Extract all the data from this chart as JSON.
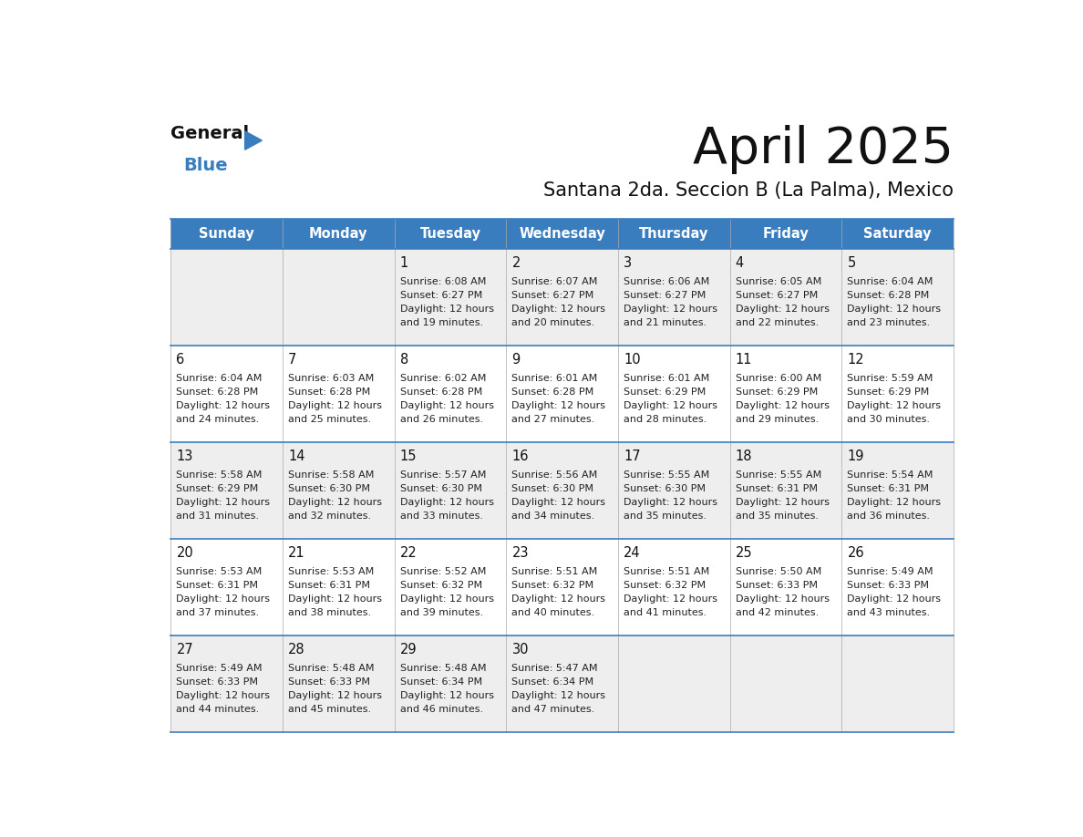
{
  "title": "April 2025",
  "subtitle": "Santana 2da. Seccion B (La Palma), Mexico",
  "header_color": "#3a7dbf",
  "header_text_color": "#ffffff",
  "background_color": "#ffffff",
  "row_bg_colors": [
    "#eeeeee",
    "#ffffff",
    "#eeeeee",
    "#ffffff",
    "#eeeeee"
  ],
  "border_color": "#3a7dbf",
  "days_of_week": [
    "Sunday",
    "Monday",
    "Tuesday",
    "Wednesday",
    "Thursday",
    "Friday",
    "Saturday"
  ],
  "calendar_data": [
    [
      {
        "day": "",
        "sunrise": "",
        "sunset": "",
        "daylight_min": ""
      },
      {
        "day": "",
        "sunrise": "",
        "sunset": "",
        "daylight_min": ""
      },
      {
        "day": "1",
        "sunrise": "6:08 AM",
        "sunset": "6:27 PM",
        "daylight_min": "19"
      },
      {
        "day": "2",
        "sunrise": "6:07 AM",
        "sunset": "6:27 PM",
        "daylight_min": "20"
      },
      {
        "day": "3",
        "sunrise": "6:06 AM",
        "sunset": "6:27 PM",
        "daylight_min": "21"
      },
      {
        "day": "4",
        "sunrise": "6:05 AM",
        "sunset": "6:27 PM",
        "daylight_min": "22"
      },
      {
        "day": "5",
        "sunrise": "6:04 AM",
        "sunset": "6:28 PM",
        "daylight_min": "23"
      }
    ],
    [
      {
        "day": "6",
        "sunrise": "6:04 AM",
        "sunset": "6:28 PM",
        "daylight_min": "24"
      },
      {
        "day": "7",
        "sunrise": "6:03 AM",
        "sunset": "6:28 PM",
        "daylight_min": "25"
      },
      {
        "day": "8",
        "sunrise": "6:02 AM",
        "sunset": "6:28 PM",
        "daylight_min": "26"
      },
      {
        "day": "9",
        "sunrise": "6:01 AM",
        "sunset": "6:28 PM",
        "daylight_min": "27"
      },
      {
        "day": "10",
        "sunrise": "6:01 AM",
        "sunset": "6:29 PM",
        "daylight_min": "28"
      },
      {
        "day": "11",
        "sunrise": "6:00 AM",
        "sunset": "6:29 PM",
        "daylight_min": "29"
      },
      {
        "day": "12",
        "sunrise": "5:59 AM",
        "sunset": "6:29 PM",
        "daylight_min": "30"
      }
    ],
    [
      {
        "day": "13",
        "sunrise": "5:58 AM",
        "sunset": "6:29 PM",
        "daylight_min": "31"
      },
      {
        "day": "14",
        "sunrise": "5:58 AM",
        "sunset": "6:30 PM",
        "daylight_min": "32"
      },
      {
        "day": "15",
        "sunrise": "5:57 AM",
        "sunset": "6:30 PM",
        "daylight_min": "33"
      },
      {
        "day": "16",
        "sunrise": "5:56 AM",
        "sunset": "6:30 PM",
        "daylight_min": "34"
      },
      {
        "day": "17",
        "sunrise": "5:55 AM",
        "sunset": "6:30 PM",
        "daylight_min": "35"
      },
      {
        "day": "18",
        "sunrise": "5:55 AM",
        "sunset": "6:31 PM",
        "daylight_min": "35"
      },
      {
        "day": "19",
        "sunrise": "5:54 AM",
        "sunset": "6:31 PM",
        "daylight_min": "36"
      }
    ],
    [
      {
        "day": "20",
        "sunrise": "5:53 AM",
        "sunset": "6:31 PM",
        "daylight_min": "37"
      },
      {
        "day": "21",
        "sunrise": "5:53 AM",
        "sunset": "6:31 PM",
        "daylight_min": "38"
      },
      {
        "day": "22",
        "sunrise": "5:52 AM",
        "sunset": "6:32 PM",
        "daylight_min": "39"
      },
      {
        "day": "23",
        "sunrise": "5:51 AM",
        "sunset": "6:32 PM",
        "daylight_min": "40"
      },
      {
        "day": "24",
        "sunrise": "5:51 AM",
        "sunset": "6:32 PM",
        "daylight_min": "41"
      },
      {
        "day": "25",
        "sunrise": "5:50 AM",
        "sunset": "6:33 PM",
        "daylight_min": "42"
      },
      {
        "day": "26",
        "sunrise": "5:49 AM",
        "sunset": "6:33 PM",
        "daylight_min": "43"
      }
    ],
    [
      {
        "day": "27",
        "sunrise": "5:49 AM",
        "sunset": "6:33 PM",
        "daylight_min": "44"
      },
      {
        "day": "28",
        "sunrise": "5:48 AM",
        "sunset": "6:33 PM",
        "daylight_min": "45"
      },
      {
        "day": "29",
        "sunrise": "5:48 AM",
        "sunset": "6:34 PM",
        "daylight_min": "46"
      },
      {
        "day": "30",
        "sunrise": "5:47 AM",
        "sunset": "6:34 PM",
        "daylight_min": "47"
      },
      {
        "day": "",
        "sunrise": "",
        "sunset": "",
        "daylight_min": ""
      },
      {
        "day": "",
        "sunrise": "",
        "sunset": "",
        "daylight_min": ""
      },
      {
        "day": "",
        "sunrise": "",
        "sunset": "",
        "daylight_min": ""
      }
    ]
  ],
  "num_weeks": 5,
  "num_days": 7
}
